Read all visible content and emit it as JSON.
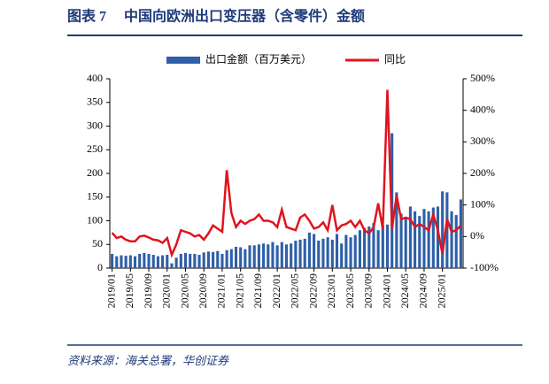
{
  "chart_data": {
    "type": "bar-line",
    "title": "图表 7　 中国向欧洲出口变压器（含零件）金额",
    "source": "资料来源：海关总署，华创证券",
    "categories": [
      "2019/01",
      null,
      null,
      null,
      "2019/05",
      null,
      null,
      null,
      "2019/09",
      null,
      null,
      null,
      "2020/01",
      null,
      null,
      null,
      "2020/05",
      null,
      null,
      null,
      "2020/09",
      null,
      null,
      null,
      "2021/01",
      null,
      null,
      null,
      "2021/05",
      null,
      null,
      null,
      "2021/09",
      null,
      null,
      null,
      "2022/01",
      null,
      null,
      null,
      "2022/05",
      null,
      null,
      null,
      "2022/09",
      null,
      null,
      null,
      "2023/01",
      null,
      null,
      null,
      "2023/05",
      null,
      null,
      null,
      "2023/09",
      null,
      null,
      null,
      "2024/01",
      null,
      null,
      null,
      "2024/05",
      null,
      null,
      null,
      "2024/09",
      null,
      null,
      null,
      "2025/01",
      null,
      null,
      null,
      null
    ],
    "series": [
      {
        "name": "出口金额（百万美元）",
        "color": "#2e5fa8",
        "values": [
          30,
          25,
          27,
          26,
          27,
          25,
          30,
          32,
          30,
          28,
          25,
          27,
          28,
          10,
          22,
          30,
          32,
          30,
          30,
          28,
          33,
          35,
          34,
          36,
          30,
          38,
          40,
          45,
          44,
          40,
          48,
          48,
          50,
          52,
          50,
          55,
          48,
          55,
          50,
          52,
          58,
          60,
          62,
          75,
          72,
          58,
          62,
          65,
          60,
          72,
          52,
          70,
          65,
          70,
          80,
          85,
          88,
          95,
          80,
          90,
          92,
          285,
          160,
          115,
          105,
          130,
          120,
          110,
          125,
          120,
          128,
          130,
          162,
          160,
          120,
          112,
          145
        ]
      },
      {
        "name": "同比",
        "color": "#e0141e",
        "axis": "y2",
        "values": [
          12,
          -5,
          0,
          -10,
          -15,
          -15,
          0,
          3,
          -3,
          -10,
          -12,
          -20,
          -5,
          -58,
          -25,
          20,
          15,
          10,
          0,
          5,
          -10,
          10,
          35,
          25,
          15,
          210,
          75,
          30,
          50,
          40,
          50,
          55,
          70,
          50,
          50,
          45,
          30,
          85,
          30,
          25,
          20,
          60,
          70,
          50,
          25,
          30,
          45,
          20,
          100,
          20,
          35,
          40,
          50,
          30,
          50,
          20,
          10,
          30,
          105,
          25,
          465,
          25,
          130,
          55,
          60,
          55,
          30,
          40,
          30,
          20,
          70,
          20,
          -55,
          55,
          15,
          20,
          35
        ]
      }
    ],
    "ylim": [
      0,
      400
    ],
    "yticks": [
      0,
      50,
      100,
      150,
      200,
      250,
      300,
      350,
      400
    ],
    "y2lim": [
      -100,
      500
    ],
    "y2ticks": [
      {
        "value": -100,
        "label": "-100%"
      },
      {
        "value": 0,
        "label": "0%"
      },
      {
        "value": 100,
        "label": "100%"
      },
      {
        "value": 200,
        "label": "200%"
      },
      {
        "value": 300,
        "label": "300%"
      },
      {
        "value": 400,
        "label": "400%"
      },
      {
        "value": 500,
        "label": "500%"
      }
    ]
  }
}
